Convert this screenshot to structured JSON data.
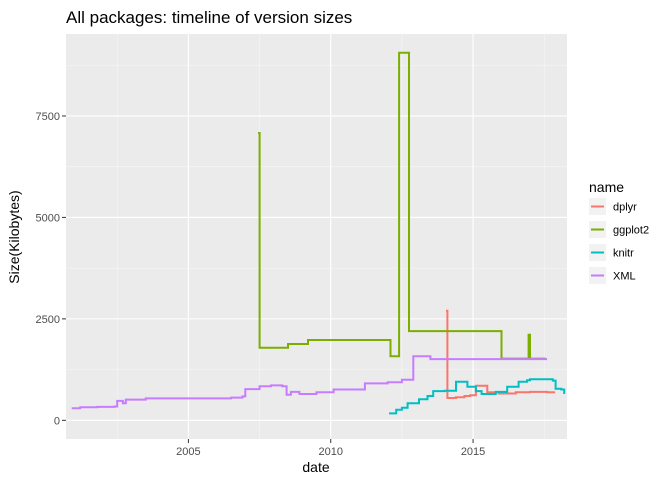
{
  "chart_data": {
    "type": "line",
    "title": "All packages: timeline of version sizes",
    "xlabel": "date",
    "ylabel": "Size(Kilobytes)",
    "xlim": [
      2000.7,
      2018.3
    ],
    "ylim": [
      -460,
      9520
    ],
    "x_ticks": [
      2005,
      2010,
      2015
    ],
    "x_tick_labels": [
      "2005",
      "2010",
      "2015"
    ],
    "y_ticks": [
      0,
      2500,
      5000,
      7500
    ],
    "y_tick_labels": [
      "0",
      "2500",
      "5000",
      "7500"
    ],
    "grid": true,
    "legend": {
      "title": "name",
      "position": "right"
    },
    "series": [
      {
        "name": "dplyr",
        "color": "#F8766D",
        "points": [
          [
            2014.05,
            2700
          ],
          [
            2014.1,
            550
          ],
          [
            2014.4,
            570
          ],
          [
            2014.7,
            600
          ],
          [
            2014.9,
            620
          ],
          [
            2015.1,
            850
          ],
          [
            2015.5,
            690
          ],
          [
            2015.9,
            660
          ],
          [
            2016.5,
            690
          ],
          [
            2017.0,
            700
          ],
          [
            2017.6,
            690
          ],
          [
            2017.85,
            710
          ]
        ]
      },
      {
        "name": "ggplot2",
        "color": "#7CAE00",
        "points": [
          [
            2007.45,
            7080
          ],
          [
            2007.5,
            1790
          ],
          [
            2008.5,
            1880
          ],
          [
            2009.2,
            1980
          ],
          [
            2012.0,
            1980
          ],
          [
            2012.1,
            1580
          ],
          [
            2012.35,
            1580
          ],
          [
            2012.4,
            9060
          ],
          [
            2012.7,
            9060
          ],
          [
            2012.75,
            2200
          ],
          [
            2016.0,
            2200
          ],
          [
            2016.0,
            1520
          ],
          [
            2016.9,
            1520
          ],
          [
            2016.95,
            2110
          ],
          [
            2017.0,
            1520
          ],
          [
            2017.55,
            1520
          ]
        ]
      },
      {
        "name": "knitr",
        "color": "#00BFC4",
        "points": [
          [
            2012.05,
            170
          ],
          [
            2012.3,
            260
          ],
          [
            2012.5,
            310
          ],
          [
            2012.7,
            420
          ],
          [
            2013.1,
            520
          ],
          [
            2013.4,
            600
          ],
          [
            2013.6,
            720
          ],
          [
            2014.0,
            730
          ],
          [
            2014.4,
            950
          ],
          [
            2014.8,
            830
          ],
          [
            2015.1,
            720
          ],
          [
            2015.3,
            650
          ],
          [
            2015.8,
            700
          ],
          [
            2016.2,
            830
          ],
          [
            2016.6,
            950
          ],
          [
            2016.9,
            990
          ],
          [
            2017.0,
            1010
          ],
          [
            2017.8,
            980
          ],
          [
            2017.9,
            780
          ],
          [
            2018.1,
            760
          ],
          [
            2018.2,
            650
          ]
        ]
      },
      {
        "name": "XML",
        "color": "#C77CFF",
        "points": [
          [
            2000.9,
            300
          ],
          [
            2001.2,
            320
          ],
          [
            2001.8,
            330
          ],
          [
            2002.4,
            340
          ],
          [
            2002.5,
            480
          ],
          [
            2002.7,
            420
          ],
          [
            2002.8,
            510
          ],
          [
            2003.5,
            540
          ],
          [
            2006.5,
            560
          ],
          [
            2006.9,
            590
          ],
          [
            2007.0,
            770
          ],
          [
            2007.5,
            840
          ],
          [
            2007.9,
            860
          ],
          [
            2008.3,
            840
          ],
          [
            2008.45,
            630
          ],
          [
            2008.6,
            700
          ],
          [
            2008.9,
            650
          ],
          [
            2009.5,
            690
          ],
          [
            2010.1,
            760
          ],
          [
            2011.2,
            910
          ],
          [
            2012.0,
            940
          ],
          [
            2012.5,
            1000
          ],
          [
            2012.9,
            1580
          ],
          [
            2013.5,
            1510
          ],
          [
            2017.6,
            1510
          ]
        ]
      }
    ]
  },
  "styles": {
    "panel_bg": "#EBEBEB",
    "grid_major": "#FFFFFF",
    "tick_color": "#333333"
  }
}
